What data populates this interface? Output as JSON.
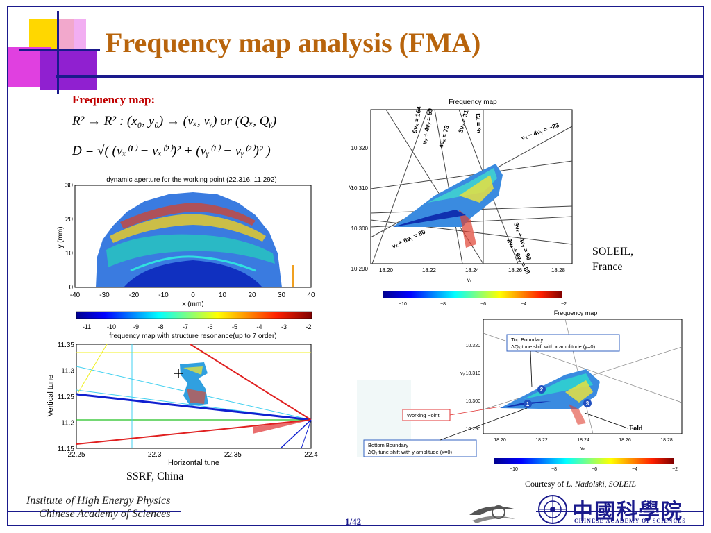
{
  "slide": {
    "title": "Frequency map analysis (FMA)",
    "subheading": "Frequency map:",
    "equation1": "R² → R² :   (x₀, y₀) → (νₓ, νᵧ) or (Qₓ, Qᵧ)",
    "equation2": "D = √( (νₓ⁽¹⁾ − νₓ⁽²⁾)² + (νᵧ⁽¹⁾ − νᵧ⁽²⁾)² )",
    "page_number": "1/42",
    "institute_line1": "Institute of High Energy Physics",
    "institute_line2": "Chinese Academy of Sciences",
    "cas_chinese": "中國科學院",
    "cas_english": "CHINESE ACADEMY OF SCIENCES"
  },
  "ssrf": {
    "caption": "SSRF, China",
    "aperture_plot": {
      "title": "dynamic aperture for the working point (22.316, 11.292)",
      "xlabel": "x (mm)",
      "ylabel": "y (mm)",
      "xticks": [
        "-40",
        "-30",
        "-20",
        "-10",
        "0",
        "10",
        "20",
        "30",
        "40"
      ],
      "yticks": [
        "0",
        "10",
        "20",
        "30"
      ]
    },
    "colorbar": {
      "ticks": [
        "-11",
        "-10",
        "-9",
        "-8",
        "-7",
        "-6",
        "-5",
        "-4",
        "-3",
        "-2"
      ],
      "label": "frequency map with structure resonance(up to 7 order)"
    },
    "tune_plot": {
      "xlabel": "Horizontal tune",
      "ylabel": "Vertical tune",
      "xticks": [
        "22.25",
        "22.3",
        "22.35",
        "22.4"
      ],
      "yticks": [
        "11.35",
        "11.3",
        "11.25",
        "11.2",
        "11.15"
      ]
    }
  },
  "soleil": {
    "caption_line1": "SOLEIL,",
    "caption_line2": "France",
    "plot1": {
      "title": "Frequency map",
      "xticks": [
        "18.20",
        "18.22",
        "18.24",
        "18.26",
        "18.28"
      ],
      "yticks": [
        "10.320",
        "10.310",
        "10.300",
        "10.290"
      ],
      "xlabel": "νₓ",
      "ylabel": "νᵧ",
      "resonances": [
        "9νₓ = 164",
        "νₓ + 4νᵧ = 59",
        "4νₓ = 73",
        "3νᵧ = 31",
        "νₓ = 73",
        "νₓ − 4νᵧ = −23",
        "3νₓ + 4νᵧ = 96",
        "2νₓ + 5νᵧ = 88",
        "νₓ + 6νᵧ = 80"
      ],
      "colorbar_ticks": [
        "−10",
        "−8",
        "−6",
        "−4",
        "−2"
      ]
    },
    "plot2": {
      "title": "Frequency map",
      "xticks": [
        "18.20",
        "18.22",
        "18.24",
        "18.26",
        "18.28"
      ],
      "yticks": [
        "10.320",
        "10.310",
        "10.300",
        "10.290"
      ],
      "xlabel": "νₓ",
      "ylabel": "νᵧ",
      "top_boundary_line1": "Top Boundary",
      "top_boundary_line2": "ΔQₓ tune shift with x amplitude (y=0)",
      "working_point": "Working Point",
      "bottom_boundary_line1": "Bottom Boundary",
      "bottom_boundary_line2": "ΔQᵧ tune shift with y amplitude (x=0)",
      "fold": "Fold",
      "markers": [
        "1",
        "2",
        "3"
      ],
      "colorbar_ticks": [
        "−10",
        "−8",
        "−6",
        "−4",
        "−2"
      ]
    },
    "courtesy_prefix": "Courtesy of",
    "courtesy_name": "L. Nadolski, SOLEIL"
  },
  "colors": {
    "navy": "#1a1a8c",
    "title_orange": "#b8640c",
    "subhead_red": "#c00000",
    "deco_yellow": "#ffd700",
    "deco_magenta": "#e040e0",
    "deco_purple": "#9020d0"
  }
}
